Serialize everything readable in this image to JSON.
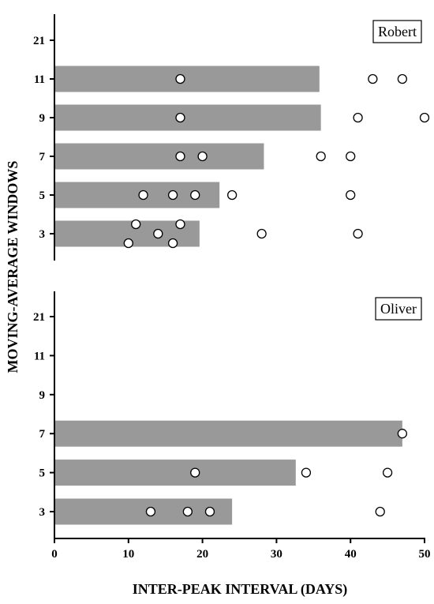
{
  "chart_data": {
    "type": "bar",
    "xlabel": "INTER-PEAK INTERVAL (DAYS)",
    "ylabel": "MOVING-AVERAGE WINDOWS",
    "xlim": [
      0,
      50
    ],
    "x_ticks": [
      "0",
      "10",
      "20",
      "30",
      "40",
      "50"
    ],
    "categories": [
      "21",
      "11",
      "9",
      "7",
      "5",
      "3"
    ],
    "panels": [
      {
        "label": "Robert",
        "bars": {
          "21": null,
          "11": 35.8,
          "9": 36,
          "7": 28.3,
          "5": 22.3,
          "3": 19.6
        },
        "points": [
          {
            "window": "11",
            "x": 17
          },
          {
            "window": "11",
            "x": 43
          },
          {
            "window": "11",
            "x": 47
          },
          {
            "window": "9",
            "x": 17
          },
          {
            "window": "9",
            "x": 41
          },
          {
            "window": "9",
            "x": 50
          },
          {
            "window": "7",
            "x": 17
          },
          {
            "window": "7",
            "x": 20
          },
          {
            "window": "7",
            "x": 36
          },
          {
            "window": "7",
            "x": 40
          },
          {
            "window": "5",
            "x": 12
          },
          {
            "window": "5",
            "x": 16
          },
          {
            "window": "5",
            "x": 19
          },
          {
            "window": "5",
            "x": 24
          },
          {
            "window": "5",
            "x": 40
          },
          {
            "window": "3",
            "x": 10
          },
          {
            "window": "3",
            "x": 11
          },
          {
            "window": "3",
            "x": 14
          },
          {
            "window": "3",
            "x": 16
          },
          {
            "window": "3",
            "x": 17
          },
          {
            "window": "3",
            "x": 28
          },
          {
            "window": "3",
            "x": 41
          }
        ]
      },
      {
        "label": "Oliver",
        "bars": {
          "21": null,
          "11": null,
          "9": null,
          "7": 47,
          "5": 32.6,
          "3": 24
        },
        "points": [
          {
            "window": "7",
            "x": 47
          },
          {
            "window": "5",
            "x": 19
          },
          {
            "window": "5",
            "x": 34
          },
          {
            "window": "5",
            "x": 45
          },
          {
            "window": "3",
            "x": 13
          },
          {
            "window": "3",
            "x": 18
          },
          {
            "window": "3",
            "x": 21
          },
          {
            "window": "3",
            "x": 44
          }
        ]
      }
    ],
    "colors": {
      "bar": "#999999",
      "point_fill": "#ffffff",
      "point_stroke": "#000000"
    }
  }
}
